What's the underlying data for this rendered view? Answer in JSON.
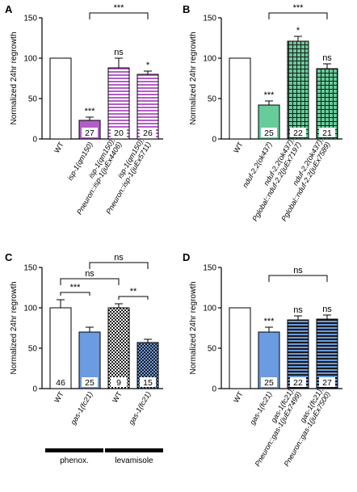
{
  "chart_data": [
    {
      "type": "bar",
      "panel": "A",
      "ylabel": "Normalized 24hr regrowth",
      "ylim": [
        0,
        150
      ],
      "yticks": [
        0,
        50,
        100,
        150
      ],
      "categories": [
        "WT",
        "isp-1(qm150)",
        "isp-1(qm150);\nPneuron::isp-1(juEx4406)",
        "isp-1(qm150);\nPneuron::isp-1(juEx5711)"
      ],
      "values": [
        100,
        23,
        88,
        80
      ],
      "errors": [
        0,
        4,
        12,
        4
      ],
      "n": [
        "",
        "27",
        "20",
        "26"
      ],
      "bar_sig": [
        "",
        "***",
        "ns",
        "*"
      ],
      "brackets": [
        {
          "from": 1,
          "to": 3,
          "label": "***"
        }
      ]
    },
    {
      "type": "bar",
      "panel": "B",
      "ylabel": "Normalized 24hr regrowth",
      "ylim": [
        0,
        150
      ],
      "yticks": [
        0,
        50,
        100,
        150
      ],
      "categories": [
        "WT",
        "nduf-2.2(ok437)",
        "nduf-2.2(ok437);\nPglobal::nduf-2.2(juEx7197)",
        "nduf-2.2(ok437);\nPglobal::nduf-2.2(juEx7589)"
      ],
      "values": [
        100,
        42,
        121,
        87
      ],
      "errors": [
        0,
        5,
        6,
        6
      ],
      "n": [
        "",
        "25",
        "22",
        "21"
      ],
      "bar_sig": [
        "",
        "***",
        "*",
        "ns"
      ],
      "brackets": [
        {
          "from": 1,
          "to": 3,
          "label": "***"
        }
      ]
    },
    {
      "type": "bar",
      "panel": "C",
      "ylabel": "Normalized 24hr regrowth",
      "ylim": [
        0,
        150
      ],
      "yticks": [
        0,
        50,
        100,
        150
      ],
      "categories": [
        "WT",
        "gas-1(fc21)",
        "WT",
        "gas-1(fc21)"
      ],
      "values": [
        100,
        70,
        100,
        57
      ],
      "errors": [
        10,
        6,
        5,
        4
      ],
      "n": [
        "46",
        "25",
        "9",
        "15"
      ],
      "bar_sig": [
        "",
        "",
        "",
        ""
      ],
      "groups": [
        "phenox.",
        "levamisole"
      ],
      "brackets": [
        {
          "from": 0,
          "to": 1,
          "label": "***"
        },
        {
          "from": 2,
          "to": 3,
          "label": "**"
        },
        {
          "from": 0.5,
          "to": 2,
          "label": "ns"
        },
        {
          "from": 1,
          "to": 3,
          "label": "ns"
        }
      ]
    },
    {
      "type": "bar",
      "panel": "D",
      "ylabel": "Normalized 24hr regrowth",
      "ylim": [
        0,
        150
      ],
      "yticks": [
        0,
        50,
        100,
        150
      ],
      "categories": [
        "WT",
        "gas-1(fc21)",
        "gas-1(fc21);\nPneuron::gas-1(juEx7499)",
        "gas-1(fc21);\nPneuron::gas-1(juEx7500)"
      ],
      "values": [
        100,
        70,
        85,
        86
      ],
      "errors": [
        0,
        6,
        5,
        5
      ],
      "n": [
        "",
        "25",
        "22",
        "27"
      ],
      "bar_sig": [
        "",
        "***",
        "ns",
        "ns"
      ],
      "brackets": [
        {
          "from": 1,
          "to": 3,
          "label": "ns"
        }
      ]
    }
  ],
  "colors": {
    "white": "#ffffff",
    "purple": "#b35ec7",
    "green": "#66cc99",
    "blue": "#6b9be0"
  },
  "fills": {
    "A": [
      "white",
      "purple",
      "purple-hstripe",
      "purple-hstripe"
    ],
    "B": [
      "white",
      "green",
      "green-grid",
      "green-grid"
    ],
    "C": [
      "white",
      "blue",
      "checker",
      "blue-checker"
    ],
    "D": [
      "white",
      "blue",
      "blue-hstripe",
      "blue-hstripe"
    ]
  }
}
